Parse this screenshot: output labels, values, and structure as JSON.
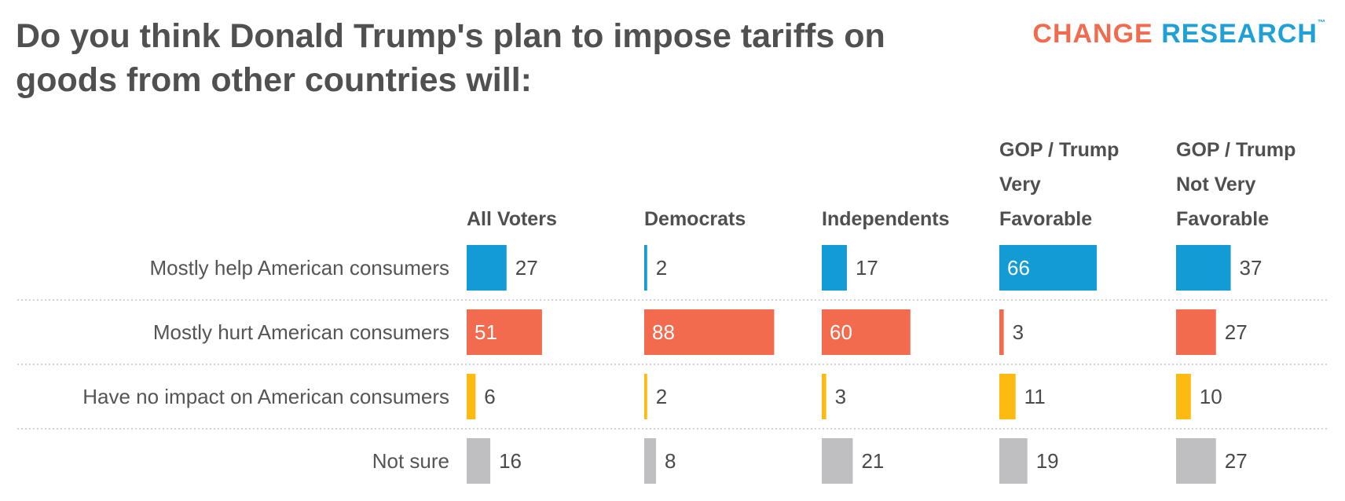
{
  "header": {
    "title": "Do you think Donald Trump's plan to impose tariffs on goods from other countries will:",
    "logo_word1": "CHANGE",
    "logo_word2": "RESEARCH",
    "logo_tm": "™"
  },
  "colors": {
    "help": "#139bd6",
    "hurt": "#f26b4f",
    "none": "#fdbb12",
    "unsure": "#bfbfc1",
    "inside_text": "#ffffff",
    "outside_text": "#4a4a4a"
  },
  "chart_data": {
    "type": "bar",
    "title": "Do you think Donald Trump's plan to impose tariffs on goods from other countries will:",
    "orientation": "horizontal-small-multiples",
    "unit": "%",
    "xlim": [
      0,
      100
    ],
    "categories": [
      "Mostly help American consumers",
      "Mostly hurt American consumers",
      "Have no impact on American consumers",
      "Not sure"
    ],
    "series": [
      {
        "name": "All Voters",
        "header_lines": [
          "All Voters"
        ],
        "values": [
          27,
          51,
          6,
          16
        ]
      },
      {
        "name": "Democrats",
        "header_lines": [
          "Democrats"
        ],
        "values": [
          2,
          88,
          2,
          8
        ]
      },
      {
        "name": "Independents",
        "header_lines": [
          "Independents"
        ],
        "values": [
          17,
          60,
          3,
          21
        ]
      },
      {
        "name": "GOP / Trump Very Favorable",
        "header_lines": [
          "GOP / Trump",
          "Very",
          "Favorable"
        ],
        "values": [
          66,
          3,
          11,
          19
        ]
      },
      {
        "name": "GOP / Trump Not Very Favorable",
        "header_lines": [
          "GOP / Trump",
          "Not Very",
          "Favorable"
        ],
        "values": [
          37,
          27,
          10,
          27
        ]
      }
    ]
  }
}
